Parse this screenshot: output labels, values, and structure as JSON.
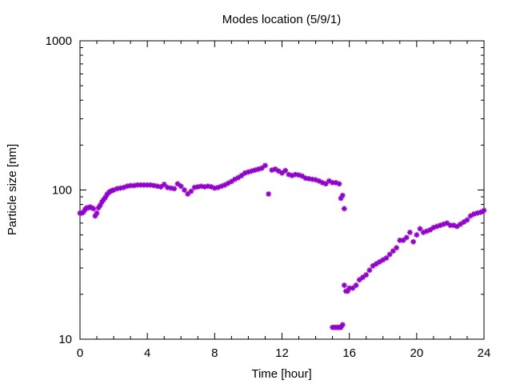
{
  "chart_data": {
    "type": "scatter",
    "title": "Modes location (5/9/1)",
    "xlabel": "Time [hour]",
    "ylabel": "Particle size [nm]",
    "xlim": [
      0,
      24
    ],
    "ylim": [
      10,
      1000
    ],
    "y_scale": "log",
    "x_ticks": [
      0,
      4,
      8,
      12,
      16,
      20,
      24
    ],
    "x_tick_labels": [
      "0",
      "4",
      "8",
      "12",
      "16",
      "20",
      "24"
    ],
    "y_ticks": [
      10,
      100,
      1000
    ],
    "y_tick_labels": [
      "10",
      "100",
      "1000"
    ],
    "grid": false,
    "legend": "none",
    "marker": "asterisk",
    "series_color": "#9400D3",
    "series": [
      {
        "x": [
          0.0,
          0.1,
          0.2,
          0.3,
          0.4,
          0.5,
          0.6,
          0.7,
          0.8,
          0.9,
          1.0,
          1.1,
          1.2,
          1.3,
          1.4,
          1.5,
          1.6,
          1.7,
          1.8,
          1.9,
          2.0,
          2.2,
          2.4,
          2.6,
          2.8,
          3.0,
          3.2,
          3.4,
          3.6,
          3.8,
          4.0,
          4.2,
          4.4,
          4.6,
          4.8,
          5.0,
          5.2,
          5.4,
          5.6,
          5.8,
          6.0,
          6.2,
          6.4,
          6.6,
          6.8,
          7.0,
          7.2,
          7.4,
          7.6,
          7.8,
          8.0,
          8.2,
          8.4,
          8.6,
          8.8,
          9.0,
          9.2,
          9.4,
          9.6,
          9.8,
          10.0,
          10.2,
          10.4,
          10.6,
          10.8,
          11.0,
          11.2,
          11.4,
          11.6,
          11.8,
          12.0,
          12.2,
          12.4,
          12.6,
          12.8,
          13.0,
          13.2,
          13.4,
          13.6,
          13.8,
          14.0,
          14.2,
          14.4,
          14.6,
          14.8,
          15.0,
          15.2,
          15.4,
          15.5,
          15.6,
          15.7
        ],
        "y": [
          70,
          70,
          71,
          74,
          76,
          76,
          77,
          76,
          75,
          67,
          70,
          76,
          79,
          83,
          86,
          89,
          93,
          96,
          98,
          99,
          100,
          102,
          103,
          104,
          106,
          107,
          107,
          108,
          108,
          108,
          108,
          108,
          107,
          106,
          105,
          109,
          104,
          103,
          102,
          110,
          106,
          100,
          94,
          98,
          104,
          105,
          106,
          105,
          106,
          105,
          103,
          104,
          106,
          108,
          111,
          114,
          118,
          121,
          125,
          130,
          132,
          134,
          136,
          138,
          140,
          146,
          94,
          136,
          138,
          134,
          130,
          135,
          127,
          125,
          127,
          126,
          124,
          120,
          119,
          118,
          117,
          115,
          112,
          110,
          115,
          112,
          112,
          110,
          88,
          92,
          75
        ]
      },
      {
        "x": [
          15.0,
          15.1,
          15.2,
          15.3,
          15.4,
          15.5,
          15.6,
          15.7,
          15.8,
          15.9,
          16.0,
          16.2,
          16.4,
          16.6,
          16.8,
          17.0,
          17.2,
          17.4,
          17.6,
          17.8,
          18.0,
          18.2,
          18.4,
          18.6,
          18.8,
          19.0,
          19.2,
          19.4,
          19.6,
          19.8,
          20.0,
          20.2,
          20.4,
          20.6,
          20.8,
          21.0,
          21.2,
          21.4,
          21.6,
          21.8,
          22.0,
          22.2,
          22.4,
          22.6,
          22.8,
          23.0,
          23.2,
          23.4,
          23.6,
          23.8,
          24.0
        ],
        "y": [
          12,
          12,
          12,
          12,
          12,
          12,
          12.5,
          23,
          21,
          21,
          22,
          22,
          23,
          25,
          26,
          27,
          29,
          31,
          32,
          33,
          34,
          35,
          37,
          39,
          41,
          46,
          46,
          48,
          52,
          45,
          50,
          55,
          52,
          53,
          54,
          56,
          57,
          58,
          59,
          60,
          58,
          58,
          57,
          59,
          61,
          63,
          67,
          69,
          70,
          71,
          73
        ]
      }
    ]
  }
}
